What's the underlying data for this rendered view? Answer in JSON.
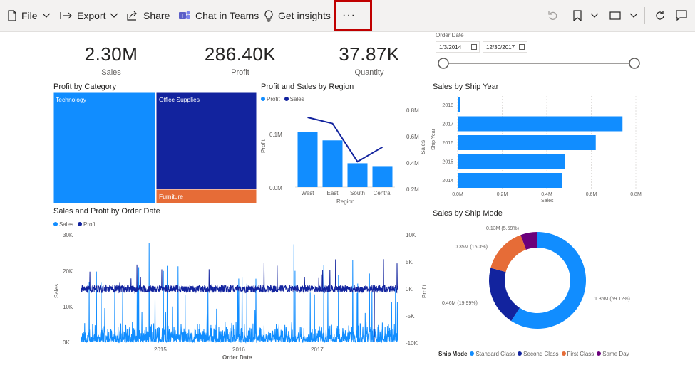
{
  "toolbar": {
    "file": "File",
    "export": "Export",
    "share": "Share",
    "chat_teams": "Chat in Teams",
    "get_insights": "Get insights",
    "more": "···"
  },
  "kpis": [
    {
      "value": "2.30M",
      "label": "Sales"
    },
    {
      "value": "286.40K",
      "label": "Profit"
    },
    {
      "value": "37.87K",
      "label": "Quantity"
    }
  ],
  "slicer": {
    "label": "Order Date",
    "start": "1/3/2014",
    "end": "12/30/2017"
  },
  "colors": {
    "light_blue": "#118dff",
    "dark_blue": "#12239e",
    "orange": "#e66c37",
    "purple": "#6b007b",
    "highlight": "#c00000"
  },
  "charts": {
    "profit_by_category": {
      "title": "Profit by Category",
      "items": [
        "Technology",
        "Office Supplies",
        "Furniture"
      ]
    },
    "profit_sales_region": {
      "title": "Profit and Sales by Region",
      "legend": [
        "Profit",
        "Sales"
      ],
      "ylabel_left": "Profit",
      "ylabel_right": "Sales",
      "xlabel": "Region",
      "left_ticks": [
        "0.1M",
        "0.0M"
      ],
      "right_ticks": [
        "0.8M",
        "0.6M",
        "0.4M",
        "0.2M"
      ]
    },
    "sales_ship_year": {
      "title": "Sales by Ship Year",
      "ylabel": "Ship Year",
      "xlabel": "Sales",
      "x_ticks": [
        "0.0M",
        "0.2M",
        "0.4M",
        "0.6M",
        "0.8M"
      ]
    },
    "sales_profit_date": {
      "title": "Sales and Profit by Order Date",
      "legend": [
        "Sales",
        "Profit"
      ],
      "ylabel_left": "Sales",
      "ylabel_right": "Profit",
      "xlabel": "Order Date",
      "left_ticks": [
        "30K",
        "20K",
        "10K",
        "0K"
      ],
      "right_ticks": [
        "10K",
        "5K",
        "0K",
        "-5K",
        "-10K"
      ],
      "x_ticks": [
        "2015",
        "2016",
        "2017"
      ]
    },
    "sales_ship_mode": {
      "title": "Sales by Ship Mode",
      "legend_title": "Ship Mode",
      "labels": [
        "0.13M (5.59%)",
        "0.35M (15.3%)",
        "0.46M (19.99%)",
        "1.36M (59.12%)"
      ]
    }
  },
  "chart_data": [
    {
      "type": "treemap",
      "title": "Profit by Category",
      "categories": [
        "Technology",
        "Office Supplies",
        "Furniture"
      ],
      "values": [
        145.45,
        122.49,
        18.45
      ]
    },
    {
      "type": "bar",
      "title": "Profit and Sales by Region",
      "categories": [
        "West",
        "East",
        "South",
        "Central"
      ],
      "series": [
        {
          "name": "Profit",
          "values": [
            0.108,
            0.092,
            0.047,
            0.04
          ]
        },
        {
          "name": "Sales",
          "values": [
            0.725,
            0.679,
            0.392,
            0.501
          ]
        }
      ],
      "xlabel": "Region",
      "ylabel": "Profit"
    },
    {
      "type": "bar",
      "title": "Sales by Ship Year",
      "categories": [
        "2018",
        "2017",
        "2016",
        "2015",
        "2014"
      ],
      "values": [
        0.01,
        0.74,
        0.62,
        0.48,
        0.47
      ],
      "xlabel": "Sales",
      "ylabel": "Ship Year",
      "xlim": [
        0,
        0.8
      ]
    },
    {
      "type": "line",
      "title": "Sales and Profit by Order Date",
      "series": [
        {
          "name": "Sales",
          "values": []
        },
        {
          "name": "Profit",
          "values": []
        }
      ],
      "xlabel": "Order Date",
      "ylim": [
        0,
        30000
      ],
      "y2lim": [
        -10000,
        10000
      ]
    },
    {
      "type": "pie",
      "title": "Sales by Ship Mode",
      "categories": [
        "Standard Class",
        "Second Class",
        "First Class",
        "Same Day"
      ],
      "values": [
        1.36,
        0.46,
        0.35,
        0.13
      ],
      "percent": [
        59.12,
        19.99,
        15.3,
        5.59
      ]
    }
  ]
}
